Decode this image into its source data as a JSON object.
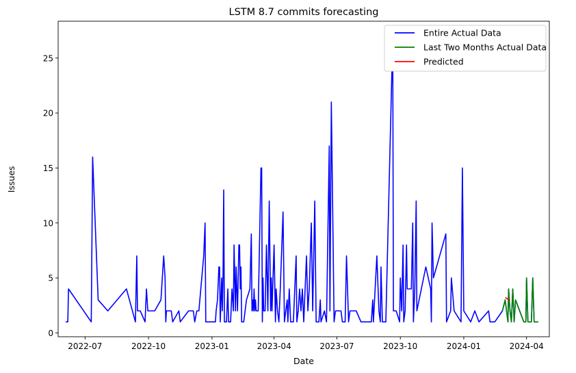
{
  "chart_data": {
    "type": "line",
    "title": "LSTM 8.7 commits forecasting",
    "xlabel": "Date",
    "ylabel": "Issues",
    "x_ticks": [
      "2022-07",
      "2022-10",
      "2023-01",
      "2023-04",
      "2023-07",
      "2023-10",
      "2024-01",
      "2024-04"
    ],
    "y_ticks": [
      "0",
      "5",
      "10",
      "15",
      "20",
      "25"
    ],
    "xlim": [
      "2022-05-23",
      "2024-05-04"
    ],
    "ylim": [
      -0.35,
      28.35
    ],
    "grid": false,
    "legend_position": "top-right",
    "series": [
      {
        "name": "Entire Actual Data",
        "color": "#0000ff",
        "points": [
          [
            "2022-06-03",
            1
          ],
          [
            "2022-06-06",
            1
          ],
          [
            "2022-06-07",
            4
          ],
          [
            "2022-07-10",
            1
          ],
          [
            "2022-07-12",
            16
          ],
          [
            "2022-07-20",
            3
          ],
          [
            "2022-08-03",
            2
          ],
          [
            "2022-08-30",
            4
          ],
          [
            "2022-09-12",
            1
          ],
          [
            "2022-09-14",
            7
          ],
          [
            "2022-09-15",
            2
          ],
          [
            "2022-09-19",
            2
          ],
          [
            "2022-09-26",
            1
          ],
          [
            "2022-09-28",
            4
          ],
          [
            "2022-09-30",
            2
          ],
          [
            "2022-10-10",
            2
          ],
          [
            "2022-10-19",
            3
          ],
          [
            "2022-10-23",
            7
          ],
          [
            "2022-10-25",
            5
          ],
          [
            "2022-10-26",
            1
          ],
          [
            "2022-10-27",
            2
          ],
          [
            "2022-11-03",
            2
          ],
          [
            "2022-11-05",
            1
          ],
          [
            "2022-11-14",
            2
          ],
          [
            "2022-11-16",
            1
          ],
          [
            "2022-11-28",
            2
          ],
          [
            "2022-12-05",
            2
          ],
          [
            "2022-12-07",
            1
          ],
          [
            "2022-12-10",
            2
          ],
          [
            "2022-12-13",
            2
          ],
          [
            "2022-12-20",
            7
          ],
          [
            "2022-12-22",
            10
          ],
          [
            "2022-12-23",
            1
          ],
          [
            "2023-01-03",
            1
          ],
          [
            "2023-01-06",
            1
          ],
          [
            "2023-01-07",
            2
          ],
          [
            "2023-01-09",
            3
          ],
          [
            "2023-01-11",
            6
          ],
          [
            "2023-01-12",
            6
          ],
          [
            "2023-01-13",
            1
          ],
          [
            "2023-01-15",
            5
          ],
          [
            "2023-01-16",
            2
          ],
          [
            "2023-01-17",
            5
          ],
          [
            "2023-01-18",
            13
          ],
          [
            "2023-01-19",
            1
          ],
          [
            "2023-01-22",
            1
          ],
          [
            "2023-01-24",
            4
          ],
          [
            "2023-01-25",
            1
          ],
          [
            "2023-01-28",
            1
          ],
          [
            "2023-01-30",
            4
          ],
          [
            "2023-02-01",
            2
          ],
          [
            "2023-02-02",
            8
          ],
          [
            "2023-02-04",
            2
          ],
          [
            "2023-02-05",
            6
          ],
          [
            "2023-02-07",
            2
          ],
          [
            "2023-02-09",
            8
          ],
          [
            "2023-02-10",
            8
          ],
          [
            "2023-02-11",
            4
          ],
          [
            "2023-02-12",
            6
          ],
          [
            "2023-02-13",
            1
          ],
          [
            "2023-02-16",
            1
          ],
          [
            "2023-02-20",
            3
          ],
          [
            "2023-02-25",
            4
          ],
          [
            "2023-02-27",
            9
          ],
          [
            "2023-02-28",
            2
          ],
          [
            "2023-03-01",
            3
          ],
          [
            "2023-03-02",
            2
          ],
          [
            "2023-03-03",
            4
          ],
          [
            "2023-03-04",
            2
          ],
          [
            "2023-03-05",
            3
          ],
          [
            "2023-03-06",
            2
          ],
          [
            "2023-03-09",
            2
          ],
          [
            "2023-03-13",
            15
          ],
          [
            "2023-03-14",
            15
          ],
          [
            "2023-03-15",
            1
          ],
          [
            "2023-03-16",
            5
          ],
          [
            "2023-03-17",
            2
          ],
          [
            "2023-03-19",
            2
          ],
          [
            "2023-03-21",
            8
          ],
          [
            "2023-03-23",
            2
          ],
          [
            "2023-03-25",
            12
          ],
          [
            "2023-03-27",
            2
          ],
          [
            "2023-03-28",
            5
          ],
          [
            "2023-03-29",
            2
          ],
          [
            "2023-03-30",
            4
          ],
          [
            "2023-04-01",
            8
          ],
          [
            "2023-04-03",
            1
          ],
          [
            "2023-04-04",
            4
          ],
          [
            "2023-04-06",
            2
          ],
          [
            "2023-04-08",
            1
          ],
          [
            "2023-04-10",
            4
          ],
          [
            "2023-04-14",
            11
          ],
          [
            "2023-04-16",
            1
          ],
          [
            "2023-04-18",
            2
          ],
          [
            "2023-04-20",
            3
          ],
          [
            "2023-04-21",
            1
          ],
          [
            "2023-04-23",
            4
          ],
          [
            "2023-04-25",
            1
          ],
          [
            "2023-04-29",
            1
          ],
          [
            "2023-05-03",
            7
          ],
          [
            "2023-05-04",
            1
          ],
          [
            "2023-05-06",
            2
          ],
          [
            "2023-05-08",
            4
          ],
          [
            "2023-05-10",
            2
          ],
          [
            "2023-05-12",
            4
          ],
          [
            "2023-05-14",
            1
          ],
          [
            "2023-05-18",
            7
          ],
          [
            "2023-05-20",
            2
          ],
          [
            "2023-05-22",
            4
          ],
          [
            "2023-05-25",
            10
          ],
          [
            "2023-05-27",
            2
          ],
          [
            "2023-05-30",
            12
          ],
          [
            "2023-06-01",
            1
          ],
          [
            "2023-06-05",
            1
          ],
          [
            "2023-06-07",
            3
          ],
          [
            "2023-06-08",
            1
          ],
          [
            "2023-06-13",
            2
          ],
          [
            "2023-06-16",
            1
          ],
          [
            "2023-06-20",
            17
          ],
          [
            "2023-06-21",
            2
          ],
          [
            "2023-06-23",
            21
          ],
          [
            "2023-06-27",
            1
          ],
          [
            "2023-06-29",
            2
          ],
          [
            "2023-07-07",
            2
          ],
          [
            "2023-07-09",
            1
          ],
          [
            "2023-07-13",
            1
          ],
          [
            "2023-07-15",
            7
          ],
          [
            "2023-07-18",
            1
          ],
          [
            "2023-07-20",
            2
          ],
          [
            "2023-07-29",
            2
          ],
          [
            "2023-08-05",
            1
          ],
          [
            "2023-08-20",
            1
          ],
          [
            "2023-08-22",
            3
          ],
          [
            "2023-08-23",
            1
          ],
          [
            "2023-08-28",
            7
          ],
          [
            "2023-08-31",
            2
          ],
          [
            "2023-09-02",
            1
          ],
          [
            "2023-09-03",
            6
          ],
          [
            "2023-09-05",
            1
          ],
          [
            "2023-09-10",
            1
          ],
          [
            "2023-09-20",
            27
          ],
          [
            "2023-09-21",
            2
          ],
          [
            "2023-09-25",
            2
          ],
          [
            "2023-09-30",
            1
          ],
          [
            "2023-10-01",
            5
          ],
          [
            "2023-10-03",
            2
          ],
          [
            "2023-10-05",
            8
          ],
          [
            "2023-10-06",
            1
          ],
          [
            "2023-10-08",
            2
          ],
          [
            "2023-10-10",
            8
          ],
          [
            "2023-10-11",
            4
          ],
          [
            "2023-10-17",
            4
          ],
          [
            "2023-10-19",
            10
          ],
          [
            "2023-10-20",
            1
          ],
          [
            "2023-10-22",
            4
          ],
          [
            "2023-10-24",
            12
          ],
          [
            "2023-10-25",
            2
          ],
          [
            "2023-11-07",
            6
          ],
          [
            "2023-11-14",
            4
          ],
          [
            "2023-11-15",
            1
          ],
          [
            "2023-11-16",
            10
          ],
          [
            "2023-11-18",
            5
          ],
          [
            "2023-12-06",
            9
          ],
          [
            "2023-12-07",
            1
          ],
          [
            "2023-12-13",
            2
          ],
          [
            "2023-12-14",
            5
          ],
          [
            "2023-12-18",
            2
          ],
          [
            "2023-12-28",
            1
          ],
          [
            "2023-12-30",
            15
          ],
          [
            "2024-01-01",
            2
          ],
          [
            "2024-01-11",
            1
          ],
          [
            "2024-01-17",
            2
          ],
          [
            "2024-01-23",
            1
          ],
          [
            "2024-02-06",
            2
          ],
          [
            "2024-02-08",
            1
          ],
          [
            "2024-02-15",
            1
          ],
          [
            "2024-02-26",
            2
          ],
          [
            "2024-03-01",
            3
          ],
          [
            "2024-03-05",
            1
          ],
          [
            "2024-03-06",
            4
          ],
          [
            "2024-03-08",
            2
          ],
          [
            "2024-03-10",
            1
          ],
          [
            "2024-03-12",
            4
          ],
          [
            "2024-03-14",
            1
          ],
          [
            "2024-03-16",
            3
          ],
          [
            "2024-03-28",
            1
          ],
          [
            "2024-03-31",
            1
          ],
          [
            "2024-04-01",
            5
          ],
          [
            "2024-04-03",
            1
          ],
          [
            "2024-04-08",
            1
          ],
          [
            "2024-04-10",
            5
          ],
          [
            "2024-04-12",
            1
          ],
          [
            "2024-04-18",
            1
          ]
        ]
      },
      {
        "name": "Last Two Months Actual Data",
        "color": "#008000",
        "points": [
          [
            "2024-02-26",
            2
          ],
          [
            "2024-03-01",
            3
          ],
          [
            "2024-03-05",
            1
          ],
          [
            "2024-03-06",
            4
          ],
          [
            "2024-03-08",
            2
          ],
          [
            "2024-03-10",
            1
          ],
          [
            "2024-03-12",
            4
          ],
          [
            "2024-03-14",
            1
          ],
          [
            "2024-03-16",
            3
          ],
          [
            "2024-03-28",
            1
          ],
          [
            "2024-03-31",
            1
          ],
          [
            "2024-04-01",
            5
          ],
          [
            "2024-04-03",
            1
          ],
          [
            "2024-04-08",
            1
          ],
          [
            "2024-04-10",
            5
          ],
          [
            "2024-04-12",
            1
          ],
          [
            "2024-04-18",
            1
          ]
        ]
      },
      {
        "name": "Predicted",
        "color": "#ff0000",
        "points": [
          [
            "2024-03-01",
            3.2
          ],
          [
            "2024-03-03",
            3.15
          ],
          [
            "2024-03-05",
            3.05
          ],
          [
            "2024-03-08",
            2.95
          ]
        ]
      }
    ]
  }
}
